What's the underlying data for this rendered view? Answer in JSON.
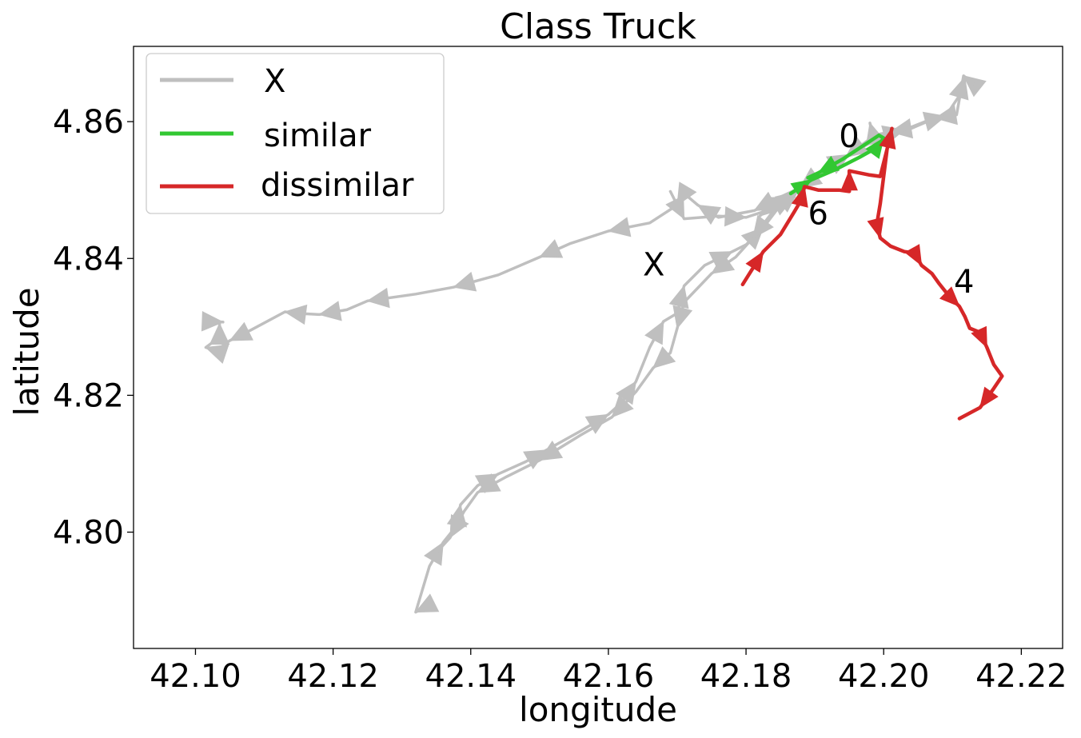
{
  "chart_data": {
    "type": "line",
    "title": "Class Truck",
    "xlabel": "longitude",
    "ylabel": "latitude",
    "xlim": [
      42.091,
      42.226
    ],
    "ylim": [
      4.783,
      4.871
    ],
    "xticks": [
      42.1,
      42.12,
      42.14,
      42.16,
      42.18,
      42.2,
      42.22
    ],
    "xtick_labels": [
      "42.10",
      "42.12",
      "42.14",
      "42.16",
      "42.18",
      "42.20",
      "42.22"
    ],
    "yticks": [
      4.8,
      4.82,
      4.84,
      4.86
    ],
    "ytick_labels": [
      "4.80",
      "4.82",
      "4.84",
      "4.86"
    ],
    "grid": false,
    "legend_position": "top-left",
    "legend": [
      {
        "label": "X",
        "color": "#bfbfbf"
      },
      {
        "label": "similar",
        "color": "#2ca02c"
      },
      {
        "label": "dissimilar",
        "color": "#d62728"
      }
    ],
    "series": [
      {
        "name": "X",
        "color": "#bfbfbf",
        "points": [
          [
            42.2131,
            4.8655
          ],
          [
            42.2116,
            4.8667
          ],
          [
            42.2106,
            4.861
          ],
          [
            42.2075,
            4.8605
          ],
          [
            42.204,
            4.859
          ],
          [
            42.201,
            4.8585
          ],
          [
            42.1985,
            4.858
          ],
          [
            42.198,
            4.8598
          ],
          [
            42.1984,
            4.8578
          ],
          [
            42.1945,
            4.8548
          ],
          [
            42.1915,
            4.853
          ],
          [
            42.1878,
            4.8503
          ],
          [
            42.185,
            4.849
          ],
          [
            42.1812,
            4.847
          ],
          [
            42.176,
            4.846
          ],
          [
            42.173,
            4.8478
          ],
          [
            42.171,
            4.8495
          ],
          [
            42.17,
            4.8478
          ],
          [
            42.166,
            4.8452
          ],
          [
            42.16,
            4.844
          ],
          [
            42.1545,
            4.8422
          ],
          [
            42.15,
            4.8402
          ],
          [
            42.144,
            4.8376
          ],
          [
            42.1375,
            4.8358
          ],
          [
            42.132,
            4.8348
          ],
          [
            42.125,
            4.8338
          ],
          [
            42.122,
            4.8325
          ],
          [
            42.118,
            4.8318
          ],
          [
            42.1145,
            4.832
          ],
          [
            42.113,
            4.8322
          ],
          [
            42.108,
            4.8295
          ],
          [
            42.105,
            4.828
          ],
          [
            42.103,
            4.8265
          ],
          [
            42.1015,
            4.827
          ],
          [
            42.1035,
            4.8285
          ],
          [
            42.1035,
            4.8305
          ],
          [
            42.1015,
            4.8308
          ],
          [
            42.104,
            4.8307
          ]
        ]
      },
      {
        "name": "X",
        "color": "#bfbfbf",
        "points": [
          [
            42.134,
            4.7893
          ],
          [
            42.132,
            4.7883
          ],
          [
            42.134,
            4.795
          ],
          [
            42.136,
            4.7985
          ],
          [
            42.138,
            4.801
          ],
          [
            42.1385,
            4.804
          ],
          [
            42.141,
            4.8068
          ],
          [
            42.144,
            4.8085
          ],
          [
            42.148,
            4.8103
          ],
          [
            42.151,
            4.812
          ],
          [
            42.156,
            4.8148
          ],
          [
            42.16,
            4.8172
          ],
          [
            42.162,
            4.819
          ],
          [
            42.164,
            4.822
          ],
          [
            42.166,
            4.827
          ],
          [
            42.168,
            4.8308
          ],
          [
            42.17,
            4.832
          ],
          [
            42.171,
            4.836
          ],
          [
            42.174,
            4.839
          ],
          [
            42.178,
            4.841
          ],
          [
            42.18,
            4.842
          ],
          [
            42.1825,
            4.8445
          ],
          [
            42.185,
            4.8478
          ],
          [
            42.1875,
            4.8498
          ],
          [
            42.191,
            4.8528
          ],
          [
            42.195,
            4.8552
          ],
          [
            42.2,
            4.858
          ],
          [
            42.203,
            4.8588
          ],
          [
            42.206,
            4.86
          ],
          [
            42.209,
            4.8608
          ],
          [
            42.211,
            4.8638
          ],
          [
            42.2118,
            4.8665
          ],
          [
            42.2131,
            4.8655
          ]
        ]
      },
      {
        "name": "X",
        "color": "#bfbfbf",
        "points": [
          [
            42.184,
            4.847
          ],
          [
            42.181,
            4.843
          ],
          [
            42.1785,
            4.8402
          ],
          [
            42.175,
            4.8378
          ],
          [
            42.171,
            4.8336
          ],
          [
            42.17,
            4.8298
          ],
          [
            42.169,
            4.8262
          ],
          [
            42.1665,
            4.824
          ],
          [
            42.164,
            4.8205
          ],
          [
            42.1605,
            4.8168
          ],
          [
            42.156,
            4.8142
          ],
          [
            42.15,
            4.8105
          ],
          [
            42.145,
            4.808
          ],
          [
            42.141,
            4.8058
          ],
          [
            42.139,
            4.803
          ],
          [
            42.137,
            4.7992
          ],
          [
            42.135,
            4.797
          ]
        ]
      },
      {
        "name": "X",
        "color": "#bfbfbf",
        "points": [
          [
            42.169,
            4.8498
          ],
          [
            42.171,
            4.8458
          ],
          [
            42.176,
            4.8462
          ],
          [
            42.18,
            4.846
          ],
          [
            42.183,
            4.847
          ],
          [
            42.187,
            4.849
          ],
          [
            42.184,
            4.848
          ],
          [
            42.182,
            4.8462
          ]
        ]
      },
      {
        "name": "similar",
        "color": "#2ca02c",
        "points": [
          [
            42.1865,
            4.8495
          ],
          [
            42.1895,
            4.8515
          ],
          [
            42.193,
            4.853
          ],
          [
            42.1965,
            4.8548
          ],
          [
            42.199,
            4.8562
          ],
          [
            42.2,
            4.8576
          ],
          [
            42.1993,
            4.858
          ],
          [
            42.1975,
            4.8568
          ],
          [
            42.194,
            4.8545
          ],
          [
            42.1905,
            4.8525
          ],
          [
            42.189,
            4.8518
          ]
        ]
      },
      {
        "name": "dissimilar",
        "color": "#d62728",
        "points": [
          [
            42.1795,
            4.8362
          ],
          [
            42.1825,
            4.841
          ],
          [
            42.185,
            4.8435
          ],
          [
            42.187,
            4.8468
          ],
          [
            42.188,
            4.8485
          ],
          [
            42.1885,
            4.8505
          ],
          [
            42.1905,
            4.85
          ],
          [
            42.1935,
            4.85
          ],
          [
            42.195,
            4.8498
          ],
          [
            42.195,
            4.8528
          ],
          [
            42.198,
            4.8522
          ],
          [
            42.1995,
            4.852
          ],
          [
            42.2005,
            4.856
          ],
          [
            42.2012,
            4.859
          ],
          [
            42.2005,
            4.856
          ],
          [
            42.1995,
            4.848
          ],
          [
            42.199,
            4.845
          ],
          [
            42.1995,
            4.843
          ],
          [
            42.201,
            4.8418
          ],
          [
            42.203,
            4.841
          ],
          [
            42.2045,
            4.8408
          ],
          [
            42.2055,
            4.839
          ],
          [
            42.207,
            4.8378
          ],
          [
            42.208,
            4.8364
          ],
          [
            42.2095,
            4.8345
          ],
          [
            42.211,
            4.833
          ],
          [
            42.2118,
            4.8315
          ],
          [
            42.2125,
            4.8298
          ],
          [
            42.214,
            4.8292
          ],
          [
            42.215,
            4.827
          ],
          [
            42.216,
            4.8245
          ],
          [
            42.2172,
            4.8228
          ],
          [
            42.216,
            4.821
          ],
          [
            42.214,
            4.8182
          ],
          [
            42.211,
            4.8166
          ]
        ]
      }
    ],
    "annotations": [
      "0",
      "6",
      "4",
      "X"
    ]
  }
}
